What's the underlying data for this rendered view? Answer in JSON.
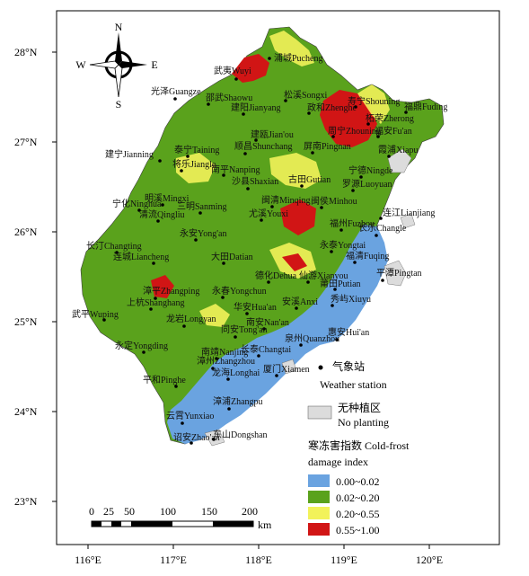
{
  "lat_ticks": [
    "28°N",
    "27°N",
    "26°N",
    "25°N",
    "24°N",
    "23°N"
  ],
  "lon_ticks": [
    "116°E",
    "117°E",
    "118°E",
    "119°E",
    "120°E"
  ],
  "compass": {
    "n": "N",
    "s": "S",
    "e": "E",
    "w": "W"
  },
  "scale": {
    "labels": [
      "0",
      "25",
      "50",
      "100",
      "150",
      "200"
    ],
    "unit": "km"
  },
  "legend": {
    "station_cn": "气象站",
    "station_en": "Weather station",
    "noplant_cn": "无种植区",
    "noplant_en": "No planting",
    "title_line1": "寒冻害指数 Cold-frost",
    "title_line2": "damage index",
    "classes": [
      {
        "label": "0.00~0.02",
        "color": "#6aa3e0"
      },
      {
        "label": "0.02~0.20",
        "color": "#5aa21c"
      },
      {
        "label": "0.20~0.55",
        "color": "#f2f25a"
      },
      {
        "label": "0.55~1.00",
        "color": "#d11515"
      }
    ],
    "noplant_color": "#dcdcdc"
  },
  "stations": [
    {
      "name": "浦城Pucheng"
    },
    {
      "name": "武夷Wuyi"
    },
    {
      "name": "光泽Guangze"
    },
    {
      "name": "邵武Shaowu"
    },
    {
      "name": "松溪Songxi"
    },
    {
      "name": "建阳Jianyang"
    },
    {
      "name": "政和Zhenghe"
    },
    {
      "name": "寿宁Shouning"
    },
    {
      "name": "福鼎Fuding"
    },
    {
      "name": "柘荣Zherong"
    },
    {
      "name": "福安Fu'an"
    },
    {
      "name": "周宁Zhouning"
    },
    {
      "name": "建瓯Jian'ou"
    },
    {
      "name": "屏南Pingnan"
    },
    {
      "name": "霞浦Xiapu"
    },
    {
      "name": "泰宁Taining"
    },
    {
      "name": "顺昌Shunchang"
    },
    {
      "name": "宁德Ningde"
    },
    {
      "name": "建宁Jianning"
    },
    {
      "name": "将乐Jiangle"
    },
    {
      "name": "南平Nanping"
    },
    {
      "name": "古田Gutian"
    },
    {
      "name": "罗源Luoyuan"
    },
    {
      "name": "沙县Shaxian"
    },
    {
      "name": "明溪Mingxi"
    },
    {
      "name": "宁化Ninghua"
    },
    {
      "name": "三明Sanming"
    },
    {
      "name": "尤溪Youxi"
    },
    {
      "name": "闽清Minqing"
    },
    {
      "name": "闽侯Minhou"
    },
    {
      "name": "连江Lianjiang"
    },
    {
      "name": "清流Qingliu"
    },
    {
      "name": "福州Fuzhou"
    },
    {
      "name": "长乐Changle"
    },
    {
      "name": "永安Yong'an"
    },
    {
      "name": "永泰Yongtai"
    },
    {
      "name": "长汀Changting"
    },
    {
      "name": "福清Fuqing"
    },
    {
      "name": "连城Liancheng"
    },
    {
      "name": "大田Datian"
    },
    {
      "name": "平潭Pingtan"
    },
    {
      "name": "德化Dehua"
    },
    {
      "name": "仙游Xianyou"
    },
    {
      "name": "莆田Putian"
    },
    {
      "name": "漳平Zhangping"
    },
    {
      "name": "永春Yongchun"
    },
    {
      "name": "上杭Shanghang"
    },
    {
      "name": "安溪Anxi"
    },
    {
      "name": "秀屿Xiuyu"
    },
    {
      "name": "华安Hua'an"
    },
    {
      "name": "龙岩Longyan"
    },
    {
      "name": "南安Nan'an"
    },
    {
      "name": "武平Wuping"
    },
    {
      "name": "惠安Hui'an"
    },
    {
      "name": "同安Tong'an"
    },
    {
      "name": "泉州Quanzhou"
    },
    {
      "name": "永定Yongding"
    },
    {
      "name": "南靖Nanjing"
    },
    {
      "name": "长泰Changtai"
    },
    {
      "name": "厦门Xiamen"
    },
    {
      "name": "漳州Zhangzhou"
    },
    {
      "name": "平和Pinghe"
    },
    {
      "name": "龙海Longhai"
    },
    {
      "name": "漳浦Zhangpu"
    },
    {
      "name": "云霄Yunxiao"
    },
    {
      "name": "诏安Zhao'an"
    },
    {
      "name": "东山Dongshan"
    }
  ]
}
